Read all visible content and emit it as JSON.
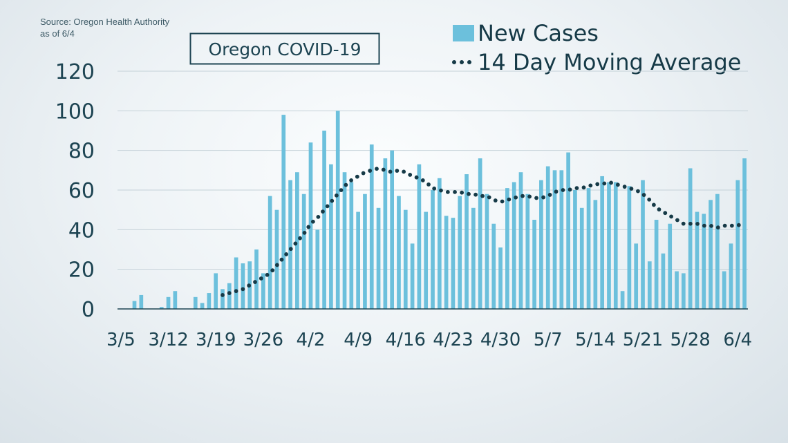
{
  "source": {
    "line1": "Source: Oregon Health Authority",
    "line2": "as of 6/4"
  },
  "colors": {
    "bar": "#6cc0dc",
    "avg": "#163a47",
    "text": "#1d4452",
    "grid": "#c4d1d8"
  },
  "chart_data": {
    "type": "bar",
    "title": "Oregon COVID-19",
    "xlabel": "",
    "ylabel": "",
    "ylim": [
      0,
      120
    ],
    "yticks": [
      0,
      20,
      40,
      60,
      80,
      100,
      120
    ],
    "grid": true,
    "legend_position": "top-right",
    "x_tick_labels": [
      "3/5",
      "3/12",
      "3/19",
      "3/26",
      "4/2",
      "4/9",
      "4/16",
      "4/23",
      "4/30",
      "5/7",
      "5/14",
      "5/21",
      "5/28",
      "6/4"
    ],
    "first_date": "3/5",
    "last_date": "6/4",
    "series": [
      {
        "name": "New Cases",
        "kind": "bar",
        "values": [
          0,
          0,
          4,
          7,
          0,
          0,
          1,
          6,
          9,
          0,
          0,
          6,
          3,
          8,
          18,
          10,
          13,
          26,
          23,
          24,
          30,
          18,
          57,
          50,
          98,
          65,
          69,
          58,
          84,
          40,
          90,
          73,
          100,
          69,
          64,
          49,
          58,
          83,
          51,
          76,
          80,
          57,
          50,
          33,
          73,
          49,
          60,
          66,
          47,
          46,
          57,
          68,
          51,
          76,
          58,
          43,
          31,
          61,
          64,
          69,
          58,
          45,
          65,
          72,
          70,
          70,
          79,
          60,
          51,
          61,
          55,
          67,
          64,
          64,
          9,
          62,
          33,
          65,
          24,
          45,
          28,
          43,
          19,
          18,
          71,
          49,
          48,
          55,
          58,
          19,
          33,
          65,
          76
        ]
      },
      {
        "name": "14 Day Moving Average",
        "kind": "line",
        "style": "dotted",
        "values": [
          null,
          null,
          null,
          null,
          null,
          null,
          null,
          null,
          null,
          null,
          null,
          null,
          null,
          null,
          null,
          7,
          8,
          9,
          10,
          12,
          14,
          16,
          18,
          22,
          26,
          30,
          34,
          38,
          43,
          46,
          50,
          54,
          58,
          62,
          65,
          67,
          69,
          70,
          71,
          70,
          69,
          70,
          69,
          67,
          66,
          64,
          61,
          60,
          59,
          59,
          59,
          58,
          58,
          57,
          57,
          55,
          54,
          55,
          56,
          57,
          57,
          56,
          56,
          57,
          59,
          60,
          60,
          61,
          61,
          62,
          63,
          63,
          64,
          63,
          62,
          61,
          60,
          58,
          55,
          51,
          49,
          47,
          45,
          43,
          43,
          43,
          42,
          42,
          41,
          42,
          42,
          42,
          44
        ]
      }
    ]
  }
}
